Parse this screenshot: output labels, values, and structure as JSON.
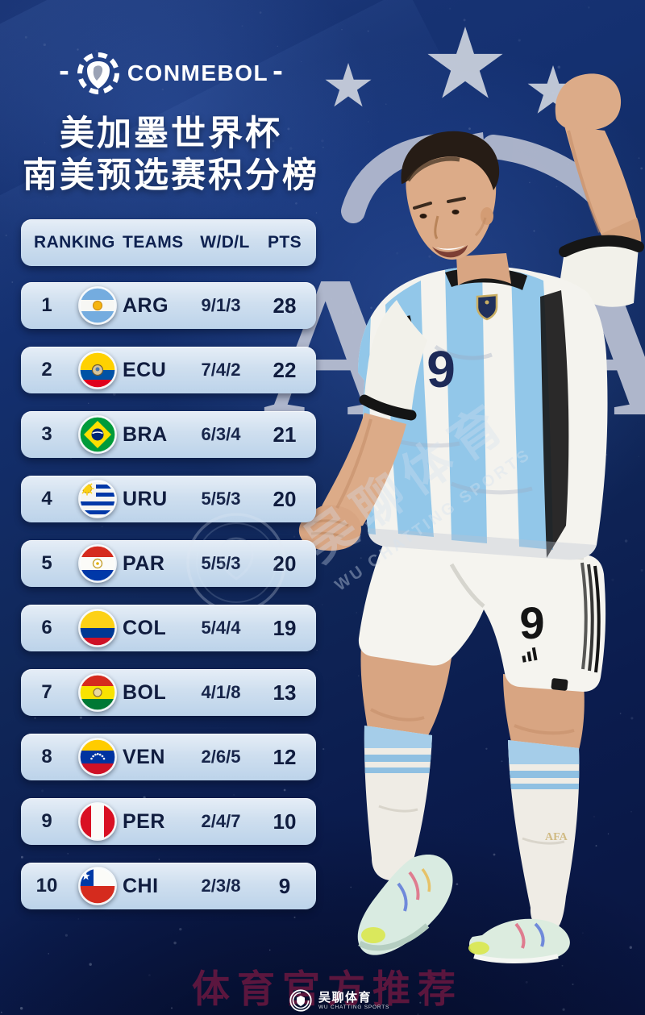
{
  "brand": {
    "dash_left": "-",
    "name": "CONMEBOL",
    "dash_right": "-"
  },
  "title": {
    "line1": "美加墨世界杯",
    "line2": "南美预选赛积分榜"
  },
  "table": {
    "headers": {
      "ranking": "RANKING",
      "teams": "TEAMS",
      "wdl": "W/D/L",
      "pts": "PTS"
    },
    "rows": [
      {
        "rank": "1",
        "flag": "argentina",
        "team": "ARG",
        "wdl": "9/1/3",
        "pts": "28"
      },
      {
        "rank": "2",
        "flag": "ecuador",
        "team": "ECU",
        "wdl": "7/4/2",
        "pts": "22"
      },
      {
        "rank": "3",
        "flag": "brazil",
        "team": "BRA",
        "wdl": "6/3/4",
        "pts": "21"
      },
      {
        "rank": "4",
        "flag": "uruguay",
        "team": "URU",
        "wdl": "5/5/3",
        "pts": "20"
      },
      {
        "rank": "5",
        "flag": "paraguay",
        "team": "PAR",
        "wdl": "5/5/3",
        "pts": "20"
      },
      {
        "rank": "6",
        "flag": "colombia",
        "team": "COL",
        "wdl": "5/4/4",
        "pts": "19"
      },
      {
        "rank": "7",
        "flag": "bolivia",
        "team": "BOL",
        "wdl": "4/1/8",
        "pts": "13"
      },
      {
        "rank": "8",
        "flag": "venezuela",
        "team": "VEN",
        "wdl": "2/6/5",
        "pts": "12"
      },
      {
        "rank": "9",
        "flag": "peru",
        "team": "PER",
        "wdl": "2/4/7",
        "pts": "10"
      },
      {
        "rank": "10",
        "flag": "chile",
        "team": "CHI",
        "wdl": "2/3/8",
        "pts": "9"
      }
    ]
  },
  "player": {
    "jersey_number": "9",
    "shorts_number": "9"
  },
  "background": {
    "afa_letters": "AFA",
    "stars_count": 3
  },
  "watermarks": {
    "diagonal_cn": "吴聊体育",
    "diagonal_en": "WU CHATTING SPORTS",
    "bottom_banner": "体育官方推荐",
    "footer_cn": "吴聊体育",
    "footer_en": "WU CHATTING SPORTS"
  },
  "colors": {
    "bg_navy": "#102759",
    "row_gradient_top": "#e6eef7",
    "row_gradient_bottom": "#bcd3ea",
    "row_text": "#101c3e",
    "watermark_silver": "#b7bed1",
    "banner_red": "#941b46",
    "jersey_blue": "#92c7e9"
  },
  "chart_data": {
    "type": "table",
    "title": "美加墨世界杯 南美预选赛积分榜 (CONMEBOL World Cup Qualifying standings)",
    "columns": [
      "RANKING",
      "TEAMS",
      "W/D/L",
      "PTS"
    ],
    "rows": [
      [
        "1",
        "ARG",
        "9/1/3",
        "28"
      ],
      [
        "2",
        "ECU",
        "7/4/2",
        "22"
      ],
      [
        "3",
        "BRA",
        "6/3/4",
        "21"
      ],
      [
        "4",
        "URU",
        "5/5/3",
        "20"
      ],
      [
        "5",
        "PAR",
        "5/5/3",
        "20"
      ],
      [
        "6",
        "COL",
        "5/4/4",
        "19"
      ],
      [
        "7",
        "BOL",
        "4/1/8",
        "13"
      ],
      [
        "8",
        "VEN",
        "2/6/5",
        "12"
      ],
      [
        "9",
        "PER",
        "2/4/7",
        "10"
      ],
      [
        "10",
        "CHI",
        "2/3/8",
        "9"
      ]
    ]
  }
}
